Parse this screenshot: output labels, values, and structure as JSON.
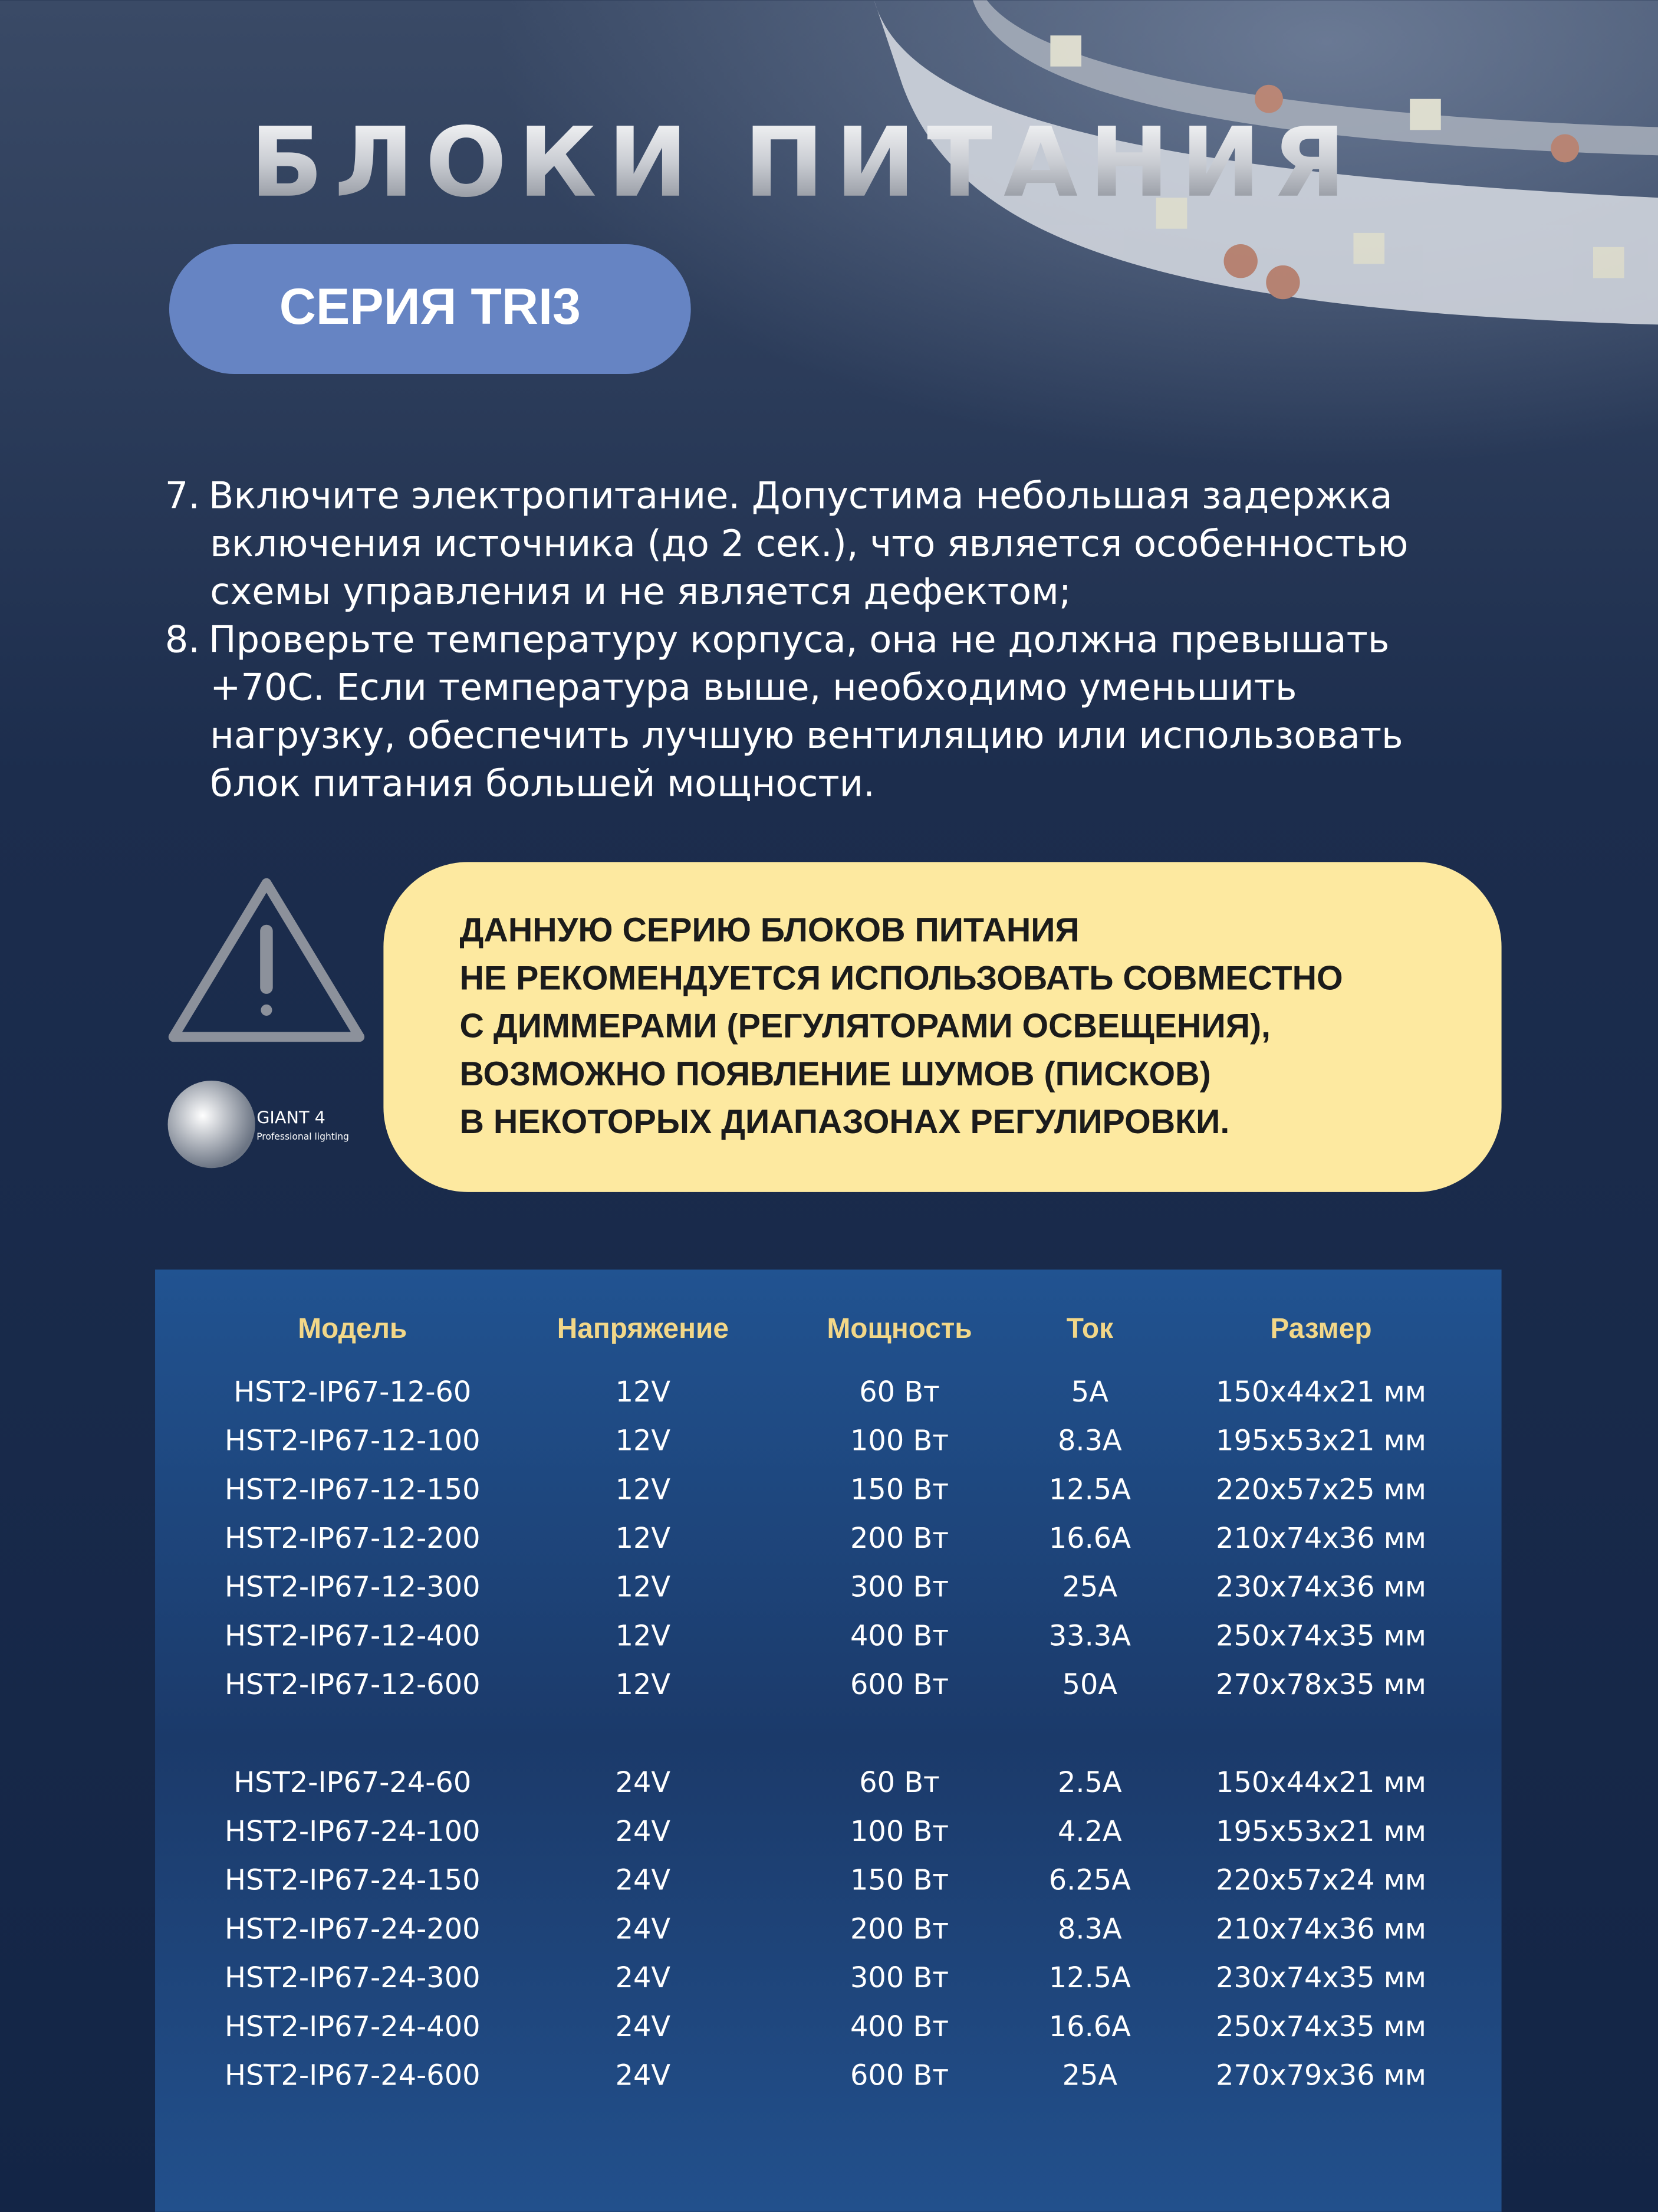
{
  "header": {
    "title": "БЛОКИ ПИТАНИЯ",
    "badge": "СЕРИЯ TRI3"
  },
  "instructions": [
    {
      "number": "7.",
      "lines": [
        "Включите электропитание. Допустима небольшая задержка",
        "включения источника (до 2 сек.), что является особенностью",
        "схемы управления и не является дефектом;"
      ]
    },
    {
      "number": "8.",
      "lines": [
        "Проверьте температуру корпуса, она не должна превышать",
        "+70С. Если температура выше, необходимо уменьшить",
        "нагрузку, обеспечить лучшую вентиляцию или использовать",
        "блок питания большей мощности."
      ]
    }
  ],
  "warning": {
    "lines": [
      "ДАННУЮ СЕРИЮ БЛОКОВ ПИТАНИЯ",
      "НЕ РЕКОМЕНДУЕТСЯ ИСПОЛЬЗОВАТЬ СОВМЕСТНО",
      "С ДИММЕРАМИ (РЕГУЛЯТОРАМИ ОСВЕЩЕНИЯ),",
      "ВОЗМОЖНО ПОЯВЛЕНИЕ ШУМОВ (ПИСКОВ)",
      "В НЕКОТОРЫХ ДИАПАЗОНАХ РЕГУЛИРОВКИ."
    ]
  },
  "logo": {
    "brand": "GIANT 4",
    "tagline": "Professional lighting"
  },
  "table": {
    "headers": [
      "Модель",
      "Напряжение",
      "Мощность",
      "Ток",
      "Размер"
    ],
    "groups": [
      {
        "rows": [
          [
            "HST2-IP67-12-60",
            "12V",
            "60 Вт",
            "5A",
            "150x44x21 мм"
          ],
          [
            "HST2-IP67-12-100",
            "12V",
            "100 Вт",
            "8.3A",
            "195x53x21 мм"
          ],
          [
            "HST2-IP67-12-150",
            "12V",
            "150 Вт",
            "12.5A",
            "220x57x25 мм"
          ],
          [
            "HST2-IP67-12-200",
            "12V",
            "200 Вт",
            "16.6A",
            "210x74x36 мм"
          ],
          [
            "HST2-IP67-12-300",
            "12V",
            "300 Вт",
            "25A",
            "230x74x36 мм"
          ],
          [
            "HST2-IP67-12-400",
            "12V",
            "400 Вт",
            "33.3A",
            "250x74x35 мм"
          ],
          [
            "HST2-IP67-12-600",
            "12V",
            "600 Вт",
            "50A",
            "270x78x35 мм"
          ]
        ]
      },
      {
        "rows": [
          [
            "HST2-IP67-24-60",
            "24V",
            "60 Вт",
            "2.5A",
            "150x44x21 мм"
          ],
          [
            "HST2-IP67-24-100",
            "24V",
            "100 Вт",
            "4.2A",
            "195x53x21 мм"
          ],
          [
            "HST2-IP67-24-150",
            "24V",
            "150 Вт",
            "6.25A",
            "220x57x24 мм"
          ],
          [
            "HST2-IP67-24-200",
            "24V",
            "200 Вт",
            "8.3A",
            "210x74x36 мм"
          ],
          [
            "HST2-IP67-24-300",
            "24V",
            "300 Вт",
            "12.5A",
            "230x74x35 мм"
          ],
          [
            "HST2-IP67-24-400",
            "24V",
            "400 Вт",
            "16.6A",
            "250x74x35 мм"
          ],
          [
            "HST2-IP67-24-600",
            "24V",
            "600 Вт",
            "25A",
            "270x79x36 мм"
          ]
        ]
      }
    ]
  }
}
